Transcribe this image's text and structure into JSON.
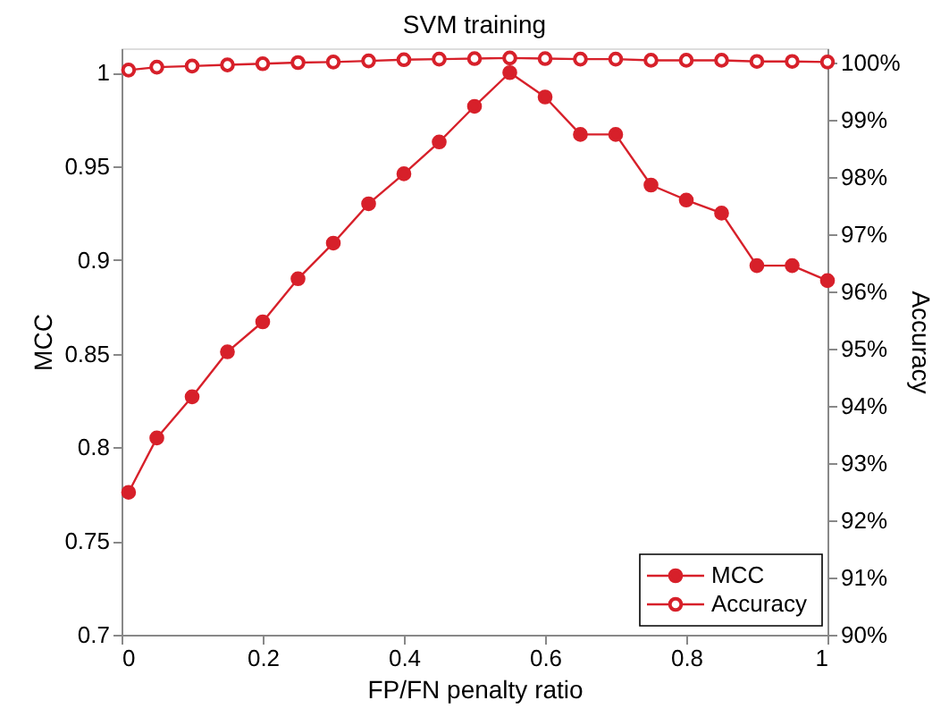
{
  "chart_data": {
    "type": "line",
    "title": "SVM training",
    "xlabel": "FP/FN penalty ratio",
    "ylabel": "MCC",
    "y2label": "Accuracy",
    "x": [
      0.01,
      0.05,
      0.1,
      0.15,
      0.2,
      0.25,
      0.3,
      0.35,
      0.4,
      0.45,
      0.5,
      0.55,
      0.6,
      0.65,
      0.7,
      0.75,
      0.8,
      0.85,
      0.9,
      0.95,
      1.0
    ],
    "series": [
      {
        "name": "MCC",
        "color": "#d7202a",
        "marker": "circle",
        "values": [
          0.776,
          0.805,
          0.827,
          0.851,
          0.867,
          0.89,
          0.909,
          0.93,
          0.946,
          0.963,
          0.982,
          1.0,
          0.987,
          0.967,
          0.967,
          0.94,
          0.932,
          0.925,
          0.897,
          0.897,
          0.889
        ]
      },
      {
        "name": "Accuracy",
        "color": "#d7202a",
        "marker": "circle",
        "axis": "y2",
        "values": [
          99.87,
          99.92,
          99.94,
          99.96,
          99.98,
          100.0,
          100.01,
          100.03,
          100.05,
          100.06,
          100.07,
          100.08,
          100.07,
          100.06,
          100.06,
          100.04,
          100.04,
          100.04,
          100.02,
          100.02,
          100.01
        ]
      }
    ],
    "xlim": [
      0,
      1
    ],
    "xticks": [
      0,
      0.2,
      0.4,
      0.6,
      0.8,
      1
    ],
    "ylim": [
      0.7,
      1.013
    ],
    "yticks": [
      0.7,
      0.75,
      0.8,
      0.85,
      0.9,
      0.95,
      1
    ],
    "y2lim": [
      90,
      100.25
    ],
    "y2ticks": [
      {
        "value": 90,
        "label": "90%"
      },
      {
        "value": 91,
        "label": "91%"
      },
      {
        "value": 92,
        "label": "92%"
      },
      {
        "value": 93,
        "label": "93%"
      },
      {
        "value": 94,
        "label": "94%"
      },
      {
        "value": 95,
        "label": "95%"
      },
      {
        "value": 96,
        "label": "96%"
      },
      {
        "value": 97,
        "label": "97%"
      },
      {
        "value": 98,
        "label": "98%"
      },
      {
        "value": 99,
        "label": "99%"
      },
      {
        "value": 100,
        "label": "100%"
      }
    ],
    "grid": false,
    "legend": "bottom right",
    "line_style": "solid"
  }
}
